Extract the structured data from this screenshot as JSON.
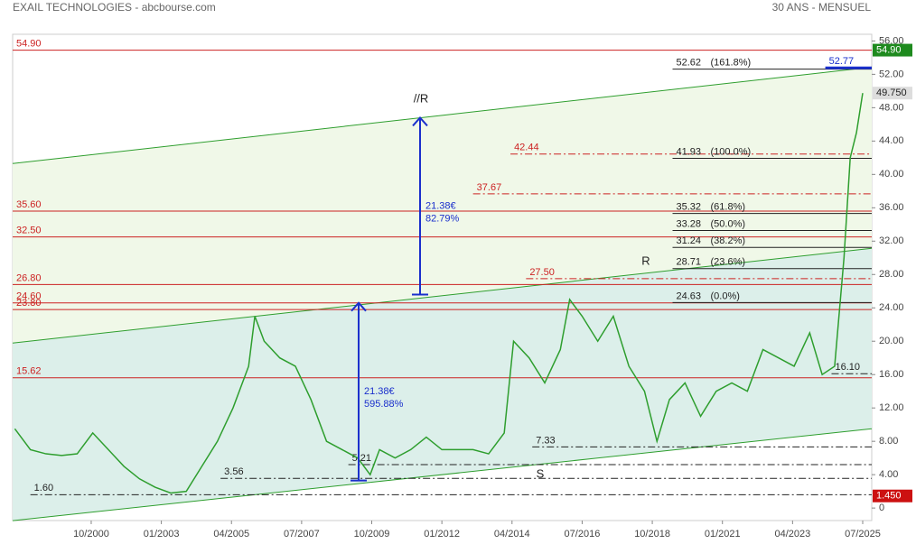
{
  "chart_data": {
    "type": "line",
    "title": "EXAIL TECHNOLOGIES - abcbourse.com",
    "subtitle": "30 ANS - MENSUEL",
    "x": [
      1998.3,
      1998.8,
      1999.3,
      1999.8,
      2000.3,
      2000.8,
      2001.3,
      2001.8,
      2002.3,
      2002.8,
      2003.3,
      2003.8,
      2004.3,
      2004.8,
      2005.3,
      2005.8,
      2006.0,
      2006.3,
      2006.8,
      2007.3,
      2007.8,
      2008.3,
      2008.8,
      2009.3,
      2009.7,
      2010.0,
      2010.5,
      2011.0,
      2011.5,
      2012.0,
      2012.5,
      2013.0,
      2013.5,
      2014.0,
      2014.3,
      2014.8,
      2015.3,
      2015.8,
      2016.1,
      2016.5,
      2017.0,
      2017.5,
      2018.0,
      2018.5,
      2018.9,
      2019.3,
      2019.8,
      2020.3,
      2020.8,
      2021.3,
      2021.8,
      2022.3,
      2022.8,
      2023.3,
      2023.8,
      2024.2,
      2024.6,
      2024.9,
      2025.1,
      2025.3,
      2025.5
    ],
    "series": [
      {
        "color": "#2e9e2e",
        "values": [
          9.5,
          7,
          6.5,
          6.3,
          6.5,
          9,
          7,
          5,
          3.5,
          2.5,
          1.8,
          2,
          5,
          8,
          12,
          17,
          23,
          20,
          18,
          17,
          13,
          8,
          7,
          6,
          4,
          7,
          6,
          7,
          8.5,
          7,
          7,
          7,
          6.5,
          9,
          20,
          18,
          15,
          19,
          25,
          23,
          20,
          23,
          17,
          14,
          8,
          13,
          15,
          11,
          14,
          15,
          14,
          19,
          18,
          17,
          21,
          16,
          17,
          30,
          42,
          45,
          49.75
        ]
      }
    ],
    "xlim": [
      1998.23,
      2025.79
    ],
    "ylim": [
      -1.5,
      56.8
    ],
    "xticks": [
      {
        "value": 2000.75,
        "label": "10/2000"
      },
      {
        "value": 2003.0,
        "label": "01/2003"
      },
      {
        "value": 2005.25,
        "label": "04/2005"
      },
      {
        "value": 2007.5,
        "label": "07/2007"
      },
      {
        "value": 2009.75,
        "label": "10/2009"
      },
      {
        "value": 2012.0,
        "label": "01/2012"
      },
      {
        "value": 2014.25,
        "label": "04/2014"
      },
      {
        "value": 2016.5,
        "label": "07/2016"
      },
      {
        "value": 2018.75,
        "label": "10/2018"
      },
      {
        "value": 2021.0,
        "label": "01/2021"
      },
      {
        "value": 2023.25,
        "label": "04/2023"
      },
      {
        "value": 2025.5,
        "label": "07/2025"
      }
    ],
    "yticks": [
      0,
      {
        "value": 4,
        "label": "4.00"
      },
      {
        "value": 8,
        "label": "8.00"
      },
      {
        "value": 12,
        "label": "12.00"
      },
      {
        "value": 16,
        "label": "16.00"
      },
      {
        "value": 20,
        "label": "20.00"
      },
      {
        "value": 24,
        "label": "24.00"
      },
      {
        "value": 28,
        "label": "28.00"
      },
      {
        "value": 32,
        "label": "32.00"
      },
      {
        "value": 36,
        "label": "36.00"
      },
      {
        "value": 40,
        "label": "40.00"
      },
      {
        "value": 44,
        "label": "44.00"
      },
      {
        "value": 48,
        "label": "48.00"
      },
      {
        "value": 52,
        "label": "52.00"
      },
      {
        "value": 56,
        "label": "56.00"
      }
    ],
    "channels": [
      {
        "x": [
          1998.23,
          2025.79
        ],
        "values": [
          -1.51,
          9.51
        ],
        "color": "#2e9e2e"
      },
      {
        "x": [
          1998.23,
          2025.79
        ],
        "values": [
          19.78,
          31.14
        ],
        "color": "#2e9e2e"
      },
      {
        "x": [
          1998.23,
          2025.79
        ],
        "values": [
          41.3,
          52.86
        ],
        "color": "#2e9e2e"
      }
    ],
    "hlines": [
      {
        "value": 54.9,
        "label": "54.90",
        "color": "#cc2222",
        "style": "solid",
        "from": 1998.23
      },
      {
        "value": 35.6,
        "label": "35.60",
        "color": "#cc2222",
        "style": "solid",
        "from": 1998.23
      },
      {
        "value": 32.5,
        "label": "32.50",
        "color": "#cc2222",
        "style": "solid",
        "from": 1998.23
      },
      {
        "value": 26.8,
        "label": "26.80",
        "color": "#cc2222",
        "style": "solid",
        "from": 1998.23
      },
      {
        "value": 24.6,
        "label": "24.60",
        "color": "#cc2222",
        "style": "solid",
        "from": 1998.23
      },
      {
        "value": 23.8,
        "label": "23.80",
        "color": "#cc2222",
        "style": "solid",
        "from": 1998.23
      },
      {
        "value": 15.62,
        "label": "15.62",
        "color": "#cc2222",
        "style": "solid",
        "from": 1998.23
      },
      {
        "value": 42.44,
        "label": "42.44",
        "color": "#cc2222",
        "style": "dashdot",
        "from": 2014.2
      },
      {
        "value": 37.67,
        "label": "37.67",
        "color": "#cc2222",
        "style": "dashdot",
        "from": 2013.0
      },
      {
        "value": 27.5,
        "label": "27.50",
        "color": "#cc2222",
        "style": "dashdot",
        "from": 2014.7
      },
      {
        "value": 52.62,
        "label": "52.62",
        "note": "(161.8%)",
        "color": "#222222",
        "style": "solid",
        "from": 2019.4
      },
      {
        "value": 41.93,
        "label": "41.93",
        "note": "(100.0%)",
        "color": "#222222",
        "style": "solid",
        "from": 2019.4
      },
      {
        "value": 35.32,
        "label": "35.32",
        "note": "(61.8%)",
        "color": "#222222",
        "style": "solid",
        "from": 2019.4
      },
      {
        "value": 33.28,
        "label": "33.28",
        "note": "(50.0%)",
        "color": "#222222",
        "style": "solid",
        "from": 2019.4
      },
      {
        "value": 31.24,
        "label": "31.24",
        "note": "(38.2%)",
        "color": "#222222",
        "style": "solid",
        "from": 2019.4
      },
      {
        "value": 28.71,
        "label": "28.71",
        "note": "(23.6%)",
        "color": "#222222",
        "style": "solid",
        "from": 2019.4
      },
      {
        "value": 24.63,
        "label": "24.63",
        "note": "(0.0%)",
        "color": "#222222",
        "style": "solid",
        "from": 2019.4
      },
      {
        "value": 52.77,
        "label": "52.77",
        "color": "#1a2fcc",
        "style": "thick",
        "from": 2024.3
      },
      {
        "value": 7.33,
        "label": "7.33",
        "color": "#222222",
        "style": "dashdot",
        "from": 2014.9
      },
      {
        "value": 5.21,
        "label": "5.21",
        "color": "#222222",
        "style": "dashdot",
        "from": 2009.0
      },
      {
        "value": 3.56,
        "label": "3.56",
        "color": "#222222",
        "style": "dashdot",
        "from": 2004.9
      },
      {
        "value": 1.6,
        "label": "1.60",
        "color": "#222222",
        "style": "dashdot",
        "from": 1998.8
      },
      {
        "value": 16.1,
        "label": "16.10",
        "color": "#222222",
        "style": "dashdot",
        "from": 2024.5
      }
    ],
    "arrows": [
      {
        "x": 2009.33,
        "from": 3.3,
        "to": 24.6,
        "labels": [
          "21.38€",
          "595.88%"
        ]
      },
      {
        "x": 2011.3,
        "from": 25.6,
        "to": 46.8,
        "labels": [
          "21.38€",
          "82.79%"
        ]
      }
    ],
    "texts": [
      "//R",
      "R",
      "S"
    ],
    "price_tags": [
      {
        "value": 54.9,
        "label": "54.90",
        "color": "#1e8a1e"
      },
      {
        "value": 49.75,
        "label": "49.750",
        "color": "#dddddd"
      },
      {
        "value": 1.45,
        "label": "1.450",
        "color": "#cc1111"
      }
    ]
  }
}
